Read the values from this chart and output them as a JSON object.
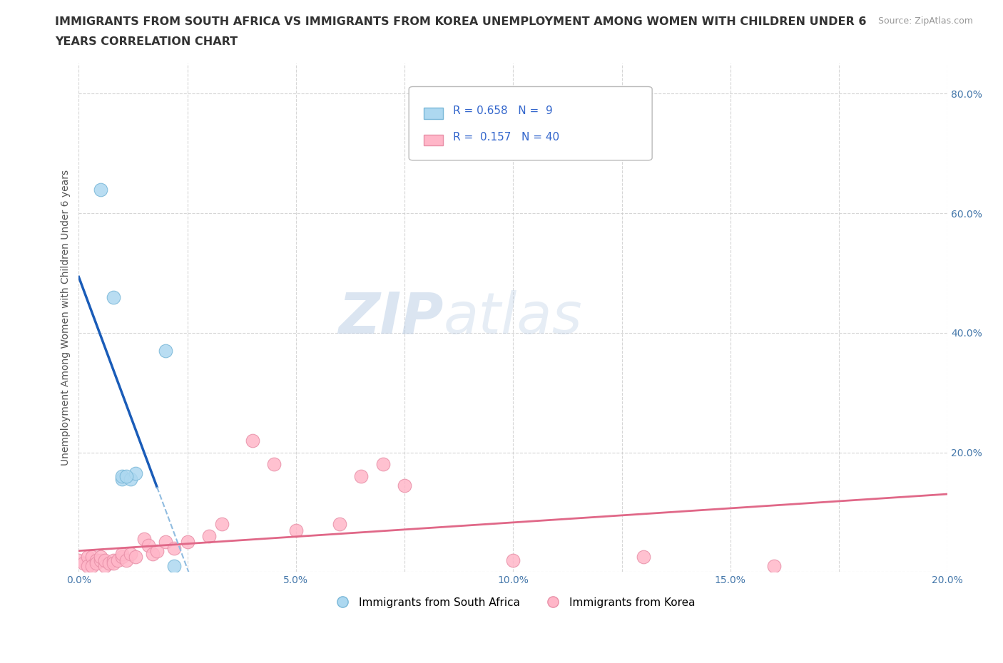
{
  "title_line1": "IMMIGRANTS FROM SOUTH AFRICA VS IMMIGRANTS FROM KOREA UNEMPLOYMENT AMONG WOMEN WITH CHILDREN UNDER 6",
  "title_line2": "YEARS CORRELATION CHART",
  "source_text": "Source: ZipAtlas.com",
  "ylabel": "Unemployment Among Women with Children Under 6 years",
  "watermark_part1": "ZIP",
  "watermark_part2": "atlas",
  "background_color": "#ffffff",
  "grid_color": "#cccccc",
  "xlim": [
    0.0,
    0.2
  ],
  "ylim": [
    0.0,
    0.85
  ],
  "xtick_labels": [
    "0.0%",
    "",
    "5.0%",
    "",
    "10.0%",
    "",
    "15.0%",
    "",
    "20.0%"
  ],
  "xtick_values": [
    0.0,
    0.025,
    0.05,
    0.075,
    0.1,
    0.125,
    0.15,
    0.175,
    0.2
  ],
  "ytick_labels": [
    "",
    "20.0%",
    "40.0%",
    "60.0%",
    "80.0%"
  ],
  "ytick_values": [
    0.0,
    0.2,
    0.4,
    0.6,
    0.8
  ],
  "south_africa_color": "#add8f0",
  "south_africa_edge": "#7ab8d8",
  "korea_color": "#ffb6c8",
  "korea_edge": "#e890a8",
  "blue_line_color": "#1a5cb8",
  "pink_line_color": "#e06888",
  "dashed_line_color": "#90bce0",
  "legend_color": "#3366cc",
  "R_sa": 0.658,
  "N_sa": 9,
  "R_korea": 0.157,
  "N_korea": 40,
  "south_africa_x": [
    0.005,
    0.008,
    0.01,
    0.01,
    0.012,
    0.013,
    0.011,
    0.02,
    0.022
  ],
  "south_africa_y": [
    0.64,
    0.46,
    0.155,
    0.16,
    0.155,
    0.165,
    0.16,
    0.37,
    0.01
  ],
  "korea_x": [
    0.0,
    0.001,
    0.002,
    0.002,
    0.003,
    0.003,
    0.004,
    0.004,
    0.005,
    0.005,
    0.006,
    0.006,
    0.007,
    0.008,
    0.008,
    0.009,
    0.01,
    0.01,
    0.011,
    0.012,
    0.013,
    0.015,
    0.016,
    0.017,
    0.018,
    0.02,
    0.022,
    0.025,
    0.03,
    0.033,
    0.04,
    0.045,
    0.05,
    0.06,
    0.065,
    0.07,
    0.075,
    0.1,
    0.13,
    0.16
  ],
  "korea_y": [
    0.02,
    0.015,
    0.025,
    0.01,
    0.025,
    0.01,
    0.02,
    0.015,
    0.02,
    0.025,
    0.01,
    0.02,
    0.015,
    0.02,
    0.015,
    0.02,
    0.025,
    0.03,
    0.02,
    0.03,
    0.025,
    0.055,
    0.045,
    0.03,
    0.035,
    0.05,
    0.04,
    0.05,
    0.06,
    0.08,
    0.22,
    0.18,
    0.07,
    0.08,
    0.16,
    0.18,
    0.145,
    0.02,
    0.025,
    0.01
  ]
}
